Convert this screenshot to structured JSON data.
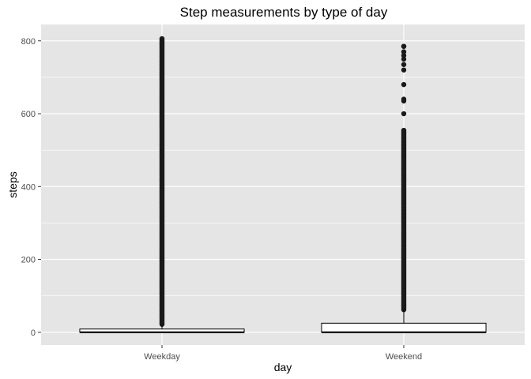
{
  "chart_data": {
    "type": "boxplot",
    "title": "Step measurements by type of day",
    "xlabel": "day",
    "ylabel": "steps",
    "categories": [
      "Weekday",
      "Weekend"
    ],
    "ylim": [
      -35,
      845
    ],
    "yticks": [
      0,
      200,
      400,
      600,
      800
    ],
    "ytick_labels": [
      "0",
      "200",
      "400",
      "600",
      "800"
    ],
    "grid": true,
    "legend": "none",
    "colors": {
      "panel": "#e5e5e5",
      "grid": "#ffffff",
      "box_fill": "#ffffff",
      "box_stroke": "#000000",
      "outlier": "#1a1a1a"
    },
    "boxes": [
      {
        "category": "Weekday",
        "min": 0,
        "q1": 0,
        "median": 0,
        "q3": 9,
        "whisker_high": 22,
        "outlier_range": [
          22,
          806
        ],
        "outlier_max": 806
      },
      {
        "category": "Weekend",
        "min": 0,
        "q1": 0,
        "median": 0,
        "q3": 25,
        "whisker_high": 62,
        "outlier_range": [
          62,
          555
        ],
        "outlier_max": 785,
        "sparse_outliers": [
          785,
          770,
          760,
          750,
          735,
          720,
          680,
          640,
          635,
          600
        ]
      }
    ]
  }
}
